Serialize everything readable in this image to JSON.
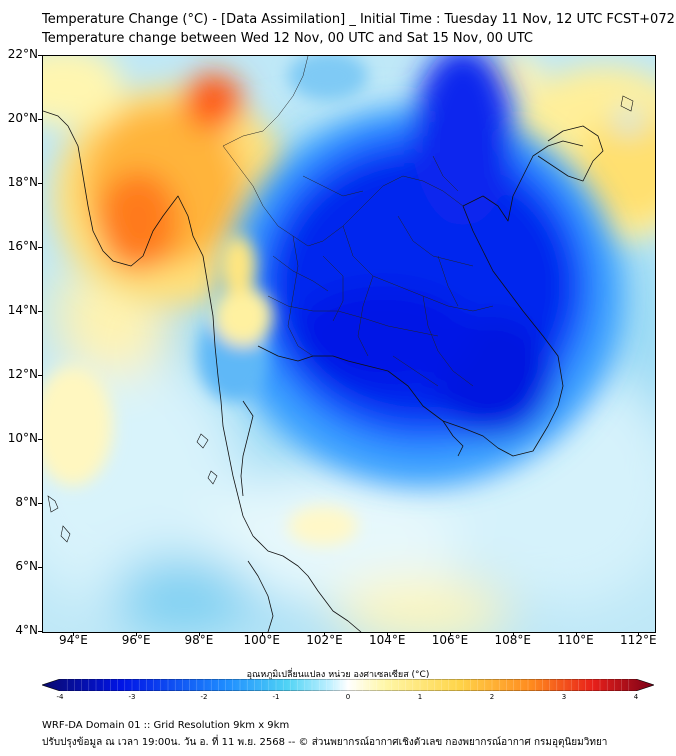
{
  "title_line1": "Temperature Change (°C) - [Data Assimilation] _ Initial Time : Tuesday 11 Nov, 12 UTC FCST+072",
  "title_line2": "Temperature change between Wed 12 Nov, 00 UTC and Sat 15 Nov, 00 UTC",
  "map": {
    "lat_labels": [
      "22°N",
      "20°N",
      "18°N",
      "16°N",
      "14°N",
      "12°N",
      "10°N",
      "8°N",
      "6°N",
      "4°N"
    ],
    "lon_labels": [
      "94°E",
      "96°E",
      "98°E",
      "100°E",
      "102°E",
      "104°E",
      "106°E",
      "108°E",
      "110°E",
      "112°E"
    ],
    "lat_range": [
      4,
      22
    ],
    "lon_range": [
      93,
      112.5
    ]
  },
  "colorbar": {
    "title": "อุณหภูมิเปลี่ยนแปลง หน่วย องศาเซลเซียส (°C)",
    "tick_labels": [
      "-4",
      "-3",
      "-2",
      "-1",
      "0",
      "1",
      "2",
      "3",
      "4"
    ],
    "range": [
      -4,
      4
    ],
    "colors": {
      "cold_extreme": "#0a0a6e",
      "cold": "#0014e6",
      "cool": "#1e8cff",
      "cyan": "#4fd3f5",
      "pale": "#bff0ff",
      "neutral": "#ffffff",
      "warm_pale": "#fff7a8",
      "warm": "#ffd54a",
      "orange": "#ff8a1e",
      "hot": "#e8201a",
      "hot_extreme": "#7a0018"
    }
  },
  "footer_line1": "WRF-DA Domain 01 :: Grid Resolution 9km x 9km",
  "footer_line2": "ปรับปรุงข้อมูล ณ เวลา 19:00น. วัน อ. ที่ 11 พ.ย. 2568 -- © ส่วนพยากรณ์อากาศเชิงตัวเลข กองพยากรณ์อากาศ กรมอุตุนิยมวิทยา"
}
